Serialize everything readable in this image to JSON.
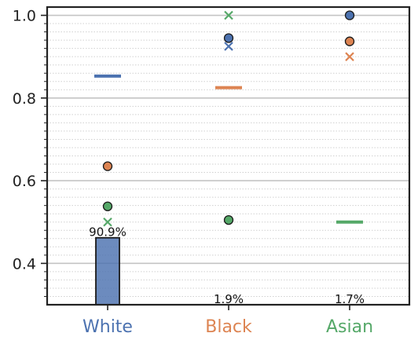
{
  "chart_data": {
    "type": "scatter",
    "title": "",
    "xlabel": "",
    "ylabel": "",
    "categories": [
      "White",
      "Black",
      "Asian"
    ],
    "category_colors": [
      "#4c72b0",
      "#dd8452",
      "#55a868"
    ],
    "ylim": [
      0.3,
      1.02
    ],
    "yticks": [
      {
        "value": 0.4,
        "label": "0.4"
      },
      {
        "value": 0.6,
        "label": "0.6"
      },
      {
        "value": 0.8,
        "label": "0.8"
      },
      {
        "value": 1.0,
        "label": "1.0"
      }
    ],
    "grid": "horizontal",
    "bars": {
      "values": [
        0.462,
        0.3,
        0.3
      ],
      "labels": [
        "90.9%",
        "1.9%",
        "1.7%"
      ],
      "color": "#4c72b0"
    },
    "series": [
      {
        "marker": "dash",
        "color": "#4c72b0",
        "values": [
          0.853,
          null,
          null
        ]
      },
      {
        "marker": "dash",
        "color": "#dd8452",
        "values": [
          null,
          0.825,
          null
        ]
      },
      {
        "marker": "dash",
        "color": "#55a868",
        "values": [
          null,
          null,
          0.5
        ]
      },
      {
        "marker": "circle",
        "color": "#4c72b0",
        "values": [
          null,
          0.945,
          1.0
        ]
      },
      {
        "marker": "circle",
        "color": "#dd8452",
        "values": [
          0.635,
          null,
          0.937
        ]
      },
      {
        "marker": "circle",
        "color": "#55a868",
        "values": [
          0.538,
          0.505,
          null
        ]
      },
      {
        "marker": "x",
        "color": "#4c72b0",
        "values": [
          null,
          0.925,
          null
        ]
      },
      {
        "marker": "x",
        "color": "#dd8452",
        "values": [
          null,
          null,
          0.9
        ]
      },
      {
        "marker": "x",
        "color": "#55a868",
        "values": [
          0.5,
          1.0,
          null
        ]
      }
    ]
  }
}
